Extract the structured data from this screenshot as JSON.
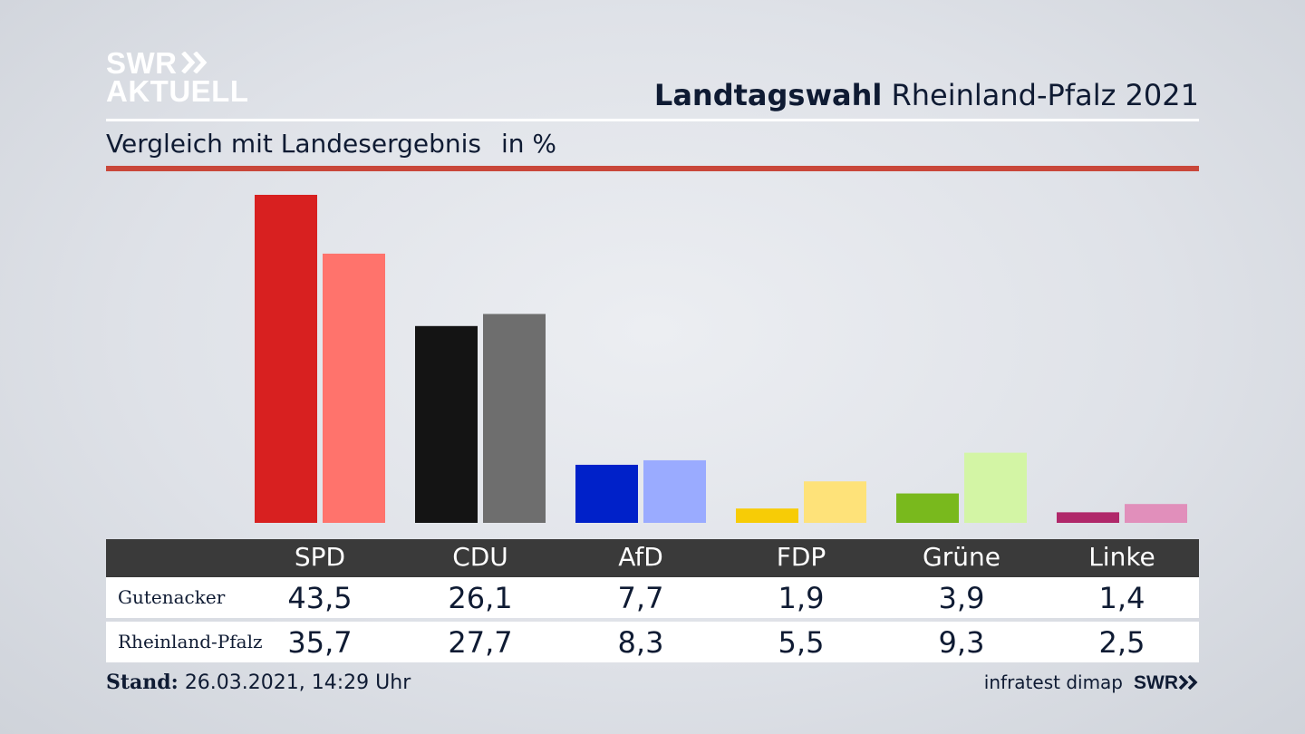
{
  "brand": {
    "logo_line1": "SWR",
    "logo_line2": "AKTUELL"
  },
  "header": {
    "title_bold": "Landtagswahl",
    "title_rest": "Rheinland-Pfalz 2021"
  },
  "subtitle": {
    "text": "Vergleich mit Landesergebnis",
    "unit": "in %"
  },
  "footer": {
    "stand_label": "Stand:",
    "stand_value": "26.03.2021, 14:29 Uhr",
    "source": "infratest dimap",
    "brand_small": "SWR"
  },
  "colors": {
    "accent_rule": "#c9473a",
    "table_header": "#3a3a3a"
  },
  "chart_data": {
    "type": "bar",
    "categories": [
      "SPD",
      "CDU",
      "AfD",
      "FDP",
      "Grüne",
      "Linke"
    ],
    "series": [
      {
        "name": "Gutenacker",
        "values": [
          43.5,
          26.1,
          7.7,
          1.9,
          3.9,
          1.4
        ],
        "display": [
          "43,5",
          "26,1",
          "7,7",
          "1,9",
          "3,9",
          "1,4"
        ],
        "colors": [
          "#d82020",
          "#141414",
          "#0021c9",
          "#f7cc06",
          "#79b91d",
          "#b0286a"
        ]
      },
      {
        "name": "Rheinland-Pfalz",
        "values": [
          35.7,
          27.7,
          8.3,
          5.5,
          9.3,
          2.5
        ],
        "display": [
          "35,7",
          "27,7",
          "8,3",
          "5,5",
          "9,3",
          "2,5"
        ],
        "colors": [
          "#ff736c",
          "#6e6e6e",
          "#9aabff",
          "#fee279",
          "#d3f5a5",
          "#e18fbb"
        ]
      }
    ],
    "ylim": [
      0,
      43.5
    ],
    "grid": false
  }
}
